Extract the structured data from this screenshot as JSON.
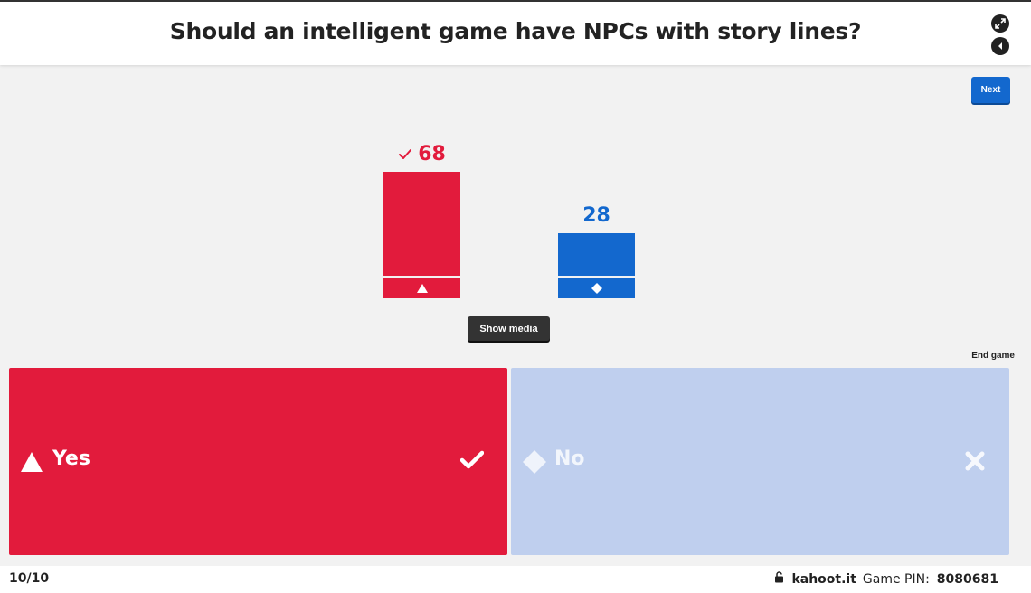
{
  "header": {
    "title": "Should an intelligent game have NPCs with story lines?",
    "icons": [
      "fullscreen-icon",
      "sound-icon"
    ]
  },
  "controls": {
    "next_label": "Next",
    "show_media_label": "Show media",
    "end_game_label": "End game"
  },
  "chart_data": {
    "type": "bar",
    "categories": [
      "Yes",
      "No"
    ],
    "values": [
      68,
      28
    ],
    "correct": [
      true,
      false
    ],
    "colors": [
      "#e21b3c",
      "#1368ce"
    ],
    "shapes": [
      "triangle",
      "diamond"
    ]
  },
  "answers": [
    {
      "label": "Yes",
      "shape": "triangle",
      "correct": true,
      "color": "#e21b3c"
    },
    {
      "label": "No",
      "shape": "diamond",
      "correct": false,
      "color": "#bfcfee"
    }
  ],
  "footer": {
    "counter": "10/10",
    "brand": "kahoot.it",
    "pin_label": "Game PIN:",
    "pin_value": "8080681"
  }
}
